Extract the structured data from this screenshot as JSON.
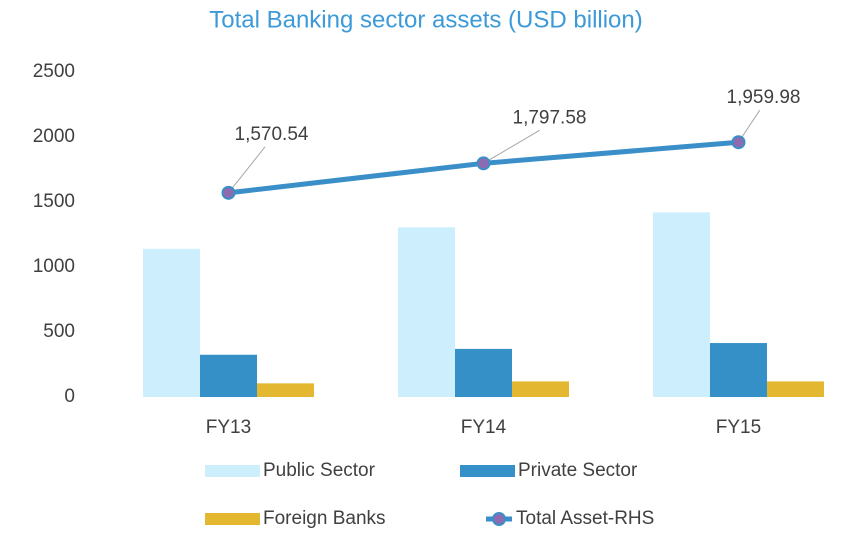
{
  "chart_data": {
    "type": "bar_line",
    "title": "Total Banking sector assets (USD billion)",
    "categories": [
      "FY13",
      "FY14",
      "FY15"
    ],
    "series": [
      {
        "name": "Public Sector",
        "type": "bar",
        "color": "#cdeefd",
        "values": [
          1140,
          1305,
          1420
        ]
      },
      {
        "name": "Private Sector",
        "type": "bar",
        "color": "#3590c8",
        "values": [
          325,
          370,
          415
        ]
      },
      {
        "name": "Foreign Banks",
        "type": "bar",
        "color": "#e4b730",
        "values": [
          105,
          120,
          120
        ]
      },
      {
        "name": "Total Asset-RHS",
        "type": "line",
        "color": "#3a8fc8",
        "marker_color": "#8e6bb0",
        "values": [
          1570.54,
          1797.58,
          1959.98
        ],
        "value_labels": [
          "1,570.54",
          "1,797.58",
          "1,959.98"
        ]
      }
    ],
    "ylim": [
      0,
      2500
    ],
    "yticks": [
      0,
      500,
      1000,
      1500,
      2000,
      2500
    ],
    "grid": false,
    "legend": "bottom"
  }
}
